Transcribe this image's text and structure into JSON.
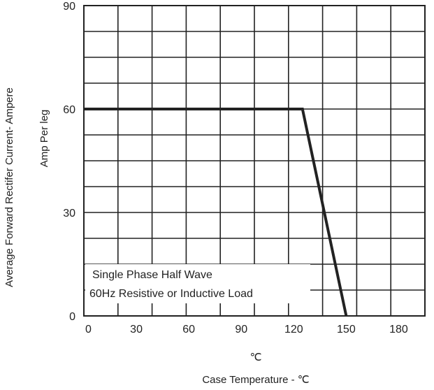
{
  "chart_data": {
    "type": "line",
    "title": "",
    "xlabel": "Case Temperature - ℃",
    "x_unit_label": "℃",
    "ylabel_lines": [
      "Average Forward Rectifer Current- Ampere",
      "Amp      Per leg"
    ],
    "xlim": [
      0,
      195
    ],
    "ylim": [
      0,
      90
    ],
    "x_ticks": [
      0,
      30,
      60,
      90,
      120,
      150,
      180
    ],
    "y_ticks": [
      0,
      30,
      60,
      90
    ],
    "grid": true,
    "legend": "none",
    "annotation_lines": [
      "Single Phase  Half Wave",
      "60Hz  Resistive or Inductive Load"
    ],
    "series": [
      {
        "x": [
          0,
          125,
          150
        ],
        "y": [
          60,
          60,
          0
        ]
      }
    ],
    "colors": {
      "line": "#222222",
      "grid": "#222222",
      "background": "#ffffff"
    }
  }
}
